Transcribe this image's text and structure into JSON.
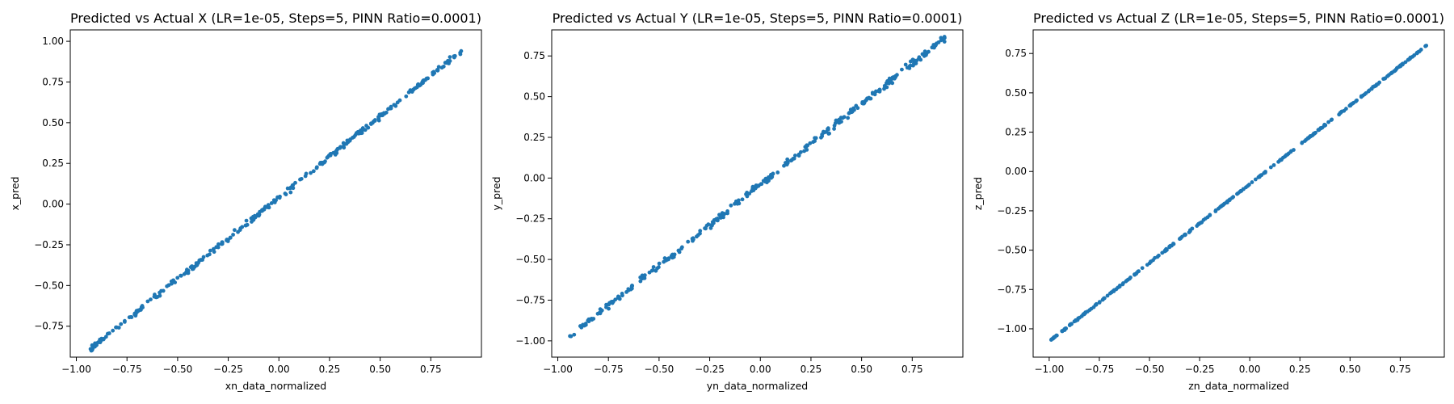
{
  "chart_data": [
    {
      "type": "scatter",
      "title": "Predicted vs Actual X (LR=1e-05, Steps=5, PINN Ratio=0.0001)",
      "xlabel": "xn_data_normalized",
      "ylabel": "x_pred",
      "xlim": [
        -1.03,
        1.0
      ],
      "ylim": [
        -0.94,
        1.07
      ],
      "xticks": [
        "−1.00",
        "−0.75",
        "−0.50",
        "−0.25",
        "0.00",
        "0.25",
        "0.50",
        "0.75"
      ],
      "xtick_values": [
        -1.0,
        -0.75,
        -0.5,
        -0.25,
        0.0,
        0.25,
        0.5,
        0.75
      ],
      "yticks": [
        "−0.75",
        "−0.50",
        "−0.25",
        "0.00",
        "0.25",
        "0.50",
        "0.75",
        "1.00"
      ],
      "ytick_values": [
        -0.75,
        -0.5,
        -0.25,
        0.0,
        0.25,
        0.5,
        0.75,
        1.0
      ],
      "marker_color": "#1f77b4",
      "relation": {
        "x_start": -0.93,
        "x_end": 0.9,
        "slope": 1.0,
        "intercept": 0.04,
        "noise": 0.012,
        "count": 300
      }
    },
    {
      "type": "scatter",
      "title": "Predicted vs Actual Y (LR=1e-05, Steps=5, PINN Ratio=0.0001)",
      "xlabel": "yn_data_normalized",
      "ylabel": "y_pred",
      "xlim": [
        -1.03,
        1.0
      ],
      "ylim": [
        -1.1,
        0.91
      ],
      "xticks": [
        "−1.00",
        "−0.75",
        "−0.50",
        "−0.25",
        "0.00",
        "0.25",
        "0.50",
        "0.75"
      ],
      "xtick_values": [
        -1.0,
        -0.75,
        -0.5,
        -0.25,
        0.0,
        0.25,
        0.5,
        0.75
      ],
      "yticks": [
        "−1.00",
        "−0.75",
        "−0.50",
        "−0.25",
        "0.00",
        "0.25",
        "0.50",
        "0.75"
      ],
      "ytick_values": [
        -1.0,
        -0.75,
        -0.5,
        -0.25,
        0.0,
        0.25,
        0.5,
        0.75
      ],
      "marker_color": "#1f77b4",
      "relation": {
        "x_start": -0.94,
        "x_end": 0.91,
        "slope": 0.99,
        "intercept": -0.04,
        "noise": 0.014,
        "count": 300
      }
    },
    {
      "type": "scatter",
      "title": "Predicted vs Actual Z (LR=1e-05, Steps=5, PINN Ratio=0.0001)",
      "xlabel": "zn_data_normalized",
      "ylabel": "z_pred",
      "xlim": [
        -1.08,
        0.97
      ],
      "ylim": [
        -1.18,
        0.9
      ],
      "xticks": [
        "−1.00",
        "−0.75",
        "−0.50",
        "−0.25",
        "0.00",
        "0.25",
        "0.50",
        "0.75"
      ],
      "xtick_values": [
        -1.0,
        -0.75,
        -0.5,
        -0.25,
        0.0,
        0.25,
        0.5,
        0.75
      ],
      "yticks": [
        "−1.00",
        "−0.75",
        "−0.50",
        "−0.25",
        "0.00",
        "0.25",
        "0.50",
        "0.75"
      ],
      "ytick_values": [
        -1.0,
        -0.75,
        -0.5,
        -0.25,
        0.0,
        0.25,
        0.5,
        0.75
      ],
      "marker_color": "#1f77b4",
      "relation": {
        "x_start": -0.99,
        "x_end": 0.88,
        "slope": 1.0,
        "intercept": -0.08,
        "noise": 0.003,
        "count": 300
      }
    }
  ]
}
